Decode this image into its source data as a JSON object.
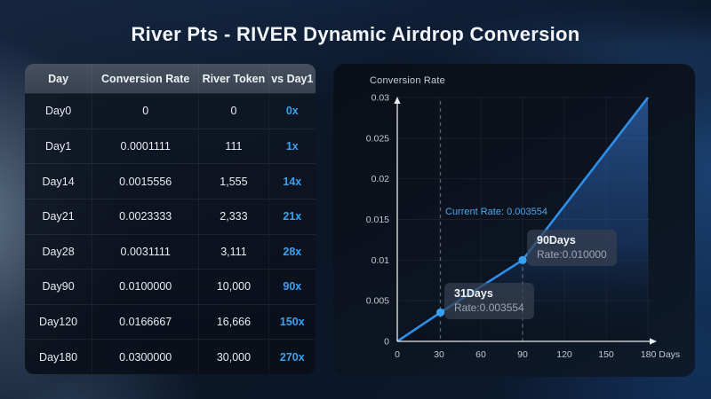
{
  "page_title": "River Pts - RIVER Dynamic Airdrop Conversion",
  "accent_color": "#3aa2f2",
  "table": {
    "headers": [
      "Day",
      "Conversion Rate",
      "River Token",
      "vs Day1"
    ],
    "rows": [
      [
        "Day0",
        "0",
        "0",
        "0x"
      ],
      [
        "Day1",
        "0.0001111",
        "111",
        "1x"
      ],
      [
        "Day14",
        "0.0015556",
        "1,555",
        "14x"
      ],
      [
        "Day21",
        "0.0023333",
        "2,333",
        "21x"
      ],
      [
        "Day28",
        "0.0031111",
        "3,111",
        "28x"
      ],
      [
        "Day90",
        "0.0100000",
        "10,000",
        "90x"
      ],
      [
        "Day120",
        "0.0166667",
        "16,666",
        "150x"
      ],
      [
        "Day180",
        "0.0300000",
        "30,000",
        "270x"
      ]
    ]
  },
  "chart": {
    "title": "Conversion Rate",
    "current_rate_label": "Current Rate: 0.003554",
    "tooltips": [
      {
        "title": "31Days",
        "value": "Rate:0.003554"
      },
      {
        "title": "90Days",
        "value": "Rate:0.010000"
      }
    ]
  },
  "chart_data": {
    "type": "area",
    "title": "Conversion Rate",
    "xlabel": "Days",
    "ylabel": "Conversion Rate",
    "x": [
      0,
      31,
      90,
      180
    ],
    "y": [
      0,
      0.003554,
      0.01,
      0.03
    ],
    "xlim": [
      0,
      180
    ],
    "ylim": [
      0,
      0.03
    ],
    "x_ticks": [
      0,
      30,
      60,
      90,
      120,
      150,
      180
    ],
    "x_tick_labels": [
      "0",
      "30",
      "60",
      "90",
      "120",
      "150",
      "180 Days"
    ],
    "y_ticks": [
      0,
      0.005,
      0.01,
      0.015,
      0.02,
      0.025,
      0.03
    ],
    "y_tick_labels": [
      "0",
      "0.005",
      "0.01",
      "0.015",
      "0.02",
      "0.025",
      "0.03"
    ],
    "grid": true,
    "legend": "none",
    "line_color": "#2e8fe8",
    "marked_points": [
      {
        "x": 31,
        "y": 0.003554,
        "label": "31Days",
        "value_label": "Rate:0.003554"
      },
      {
        "x": 90,
        "y": 0.01,
        "label": "90Days",
        "value_label": "Rate:0.010000"
      }
    ],
    "dashed_guides": [
      {
        "x": 31,
        "from_top": true
      },
      {
        "x": 90,
        "from_top": false
      }
    ],
    "annotation": "Current Rate: 0.003554"
  }
}
